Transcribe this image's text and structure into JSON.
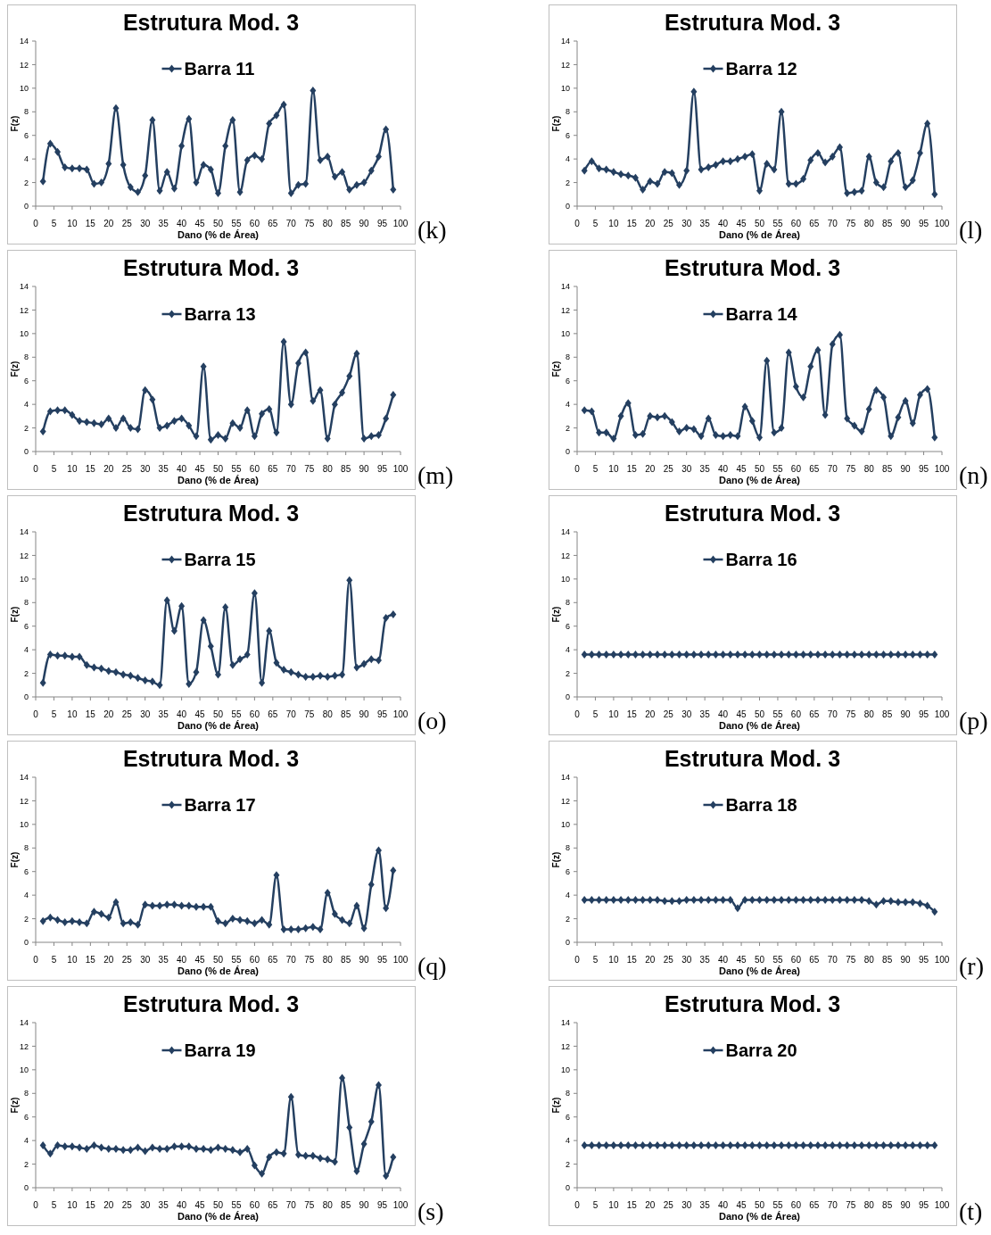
{
  "chart_data": [
    {
      "type": "line",
      "title": "Estrutura Mod. 3",
      "xlabel": "Dano (% de Área)",
      "ylabel": "F(z)",
      "legend": "top",
      "marker": "diamond",
      "xlim": [
        0,
        100
      ],
      "xticks": [
        0,
        5,
        10,
        15,
        20,
        25,
        30,
        35,
        40,
        45,
        50,
        55,
        60,
        65,
        70,
        75,
        80,
        85,
        90,
        95,
        100
      ],
      "ylim": [
        0,
        14
      ],
      "yticks": [
        0,
        2,
        4,
        6,
        8,
        10,
        12,
        14
      ],
      "annotations": [
        "(k)"
      ],
      "x": [
        2,
        4,
        6,
        8,
        10,
        12,
        14,
        16,
        18,
        20,
        22,
        24,
        26,
        28,
        30,
        32,
        34,
        36,
        38,
        40,
        42,
        44,
        46,
        48,
        50,
        52,
        54,
        56,
        58,
        60,
        62,
        64,
        66,
        68,
        70,
        72,
        74,
        76,
        78,
        80,
        82,
        84,
        86,
        88,
        90,
        92,
        94,
        96,
        98
      ],
      "series": [
        {
          "name": "Barra 11",
          "color": "#243f60",
          "values": [
            2.1,
            5.3,
            4.6,
            3.3,
            3.2,
            3.2,
            3.1,
            1.9,
            2.0,
            3.6,
            8.3,
            3.5,
            1.6,
            1.2,
            2.6,
            7.3,
            1.3,
            2.9,
            1.5,
            5.1,
            7.4,
            2.0,
            3.5,
            3.1,
            1.1,
            5.1,
            7.3,
            1.2,
            3.9,
            4.3,
            4.0,
            7.0,
            7.7,
            8.6,
            1.1,
            1.8,
            1.9,
            9.8,
            3.9,
            4.2,
            2.5,
            2.9,
            1.4,
            1.8,
            2.0,
            3.0,
            4.2,
            6.5,
            1.4
          ]
        }
      ]
    },
    {
      "type": "line",
      "title": "Estrutura Mod. 3",
      "xlabel": "Dano (% de Área)",
      "ylabel": "F(z)",
      "legend": "top",
      "marker": "diamond",
      "xlim": [
        0,
        100
      ],
      "xticks": [
        0,
        5,
        10,
        15,
        20,
        25,
        30,
        35,
        40,
        45,
        50,
        55,
        60,
        65,
        70,
        75,
        80,
        85,
        90,
        95,
        100
      ],
      "ylim": [
        0,
        14
      ],
      "yticks": [
        0,
        2,
        4,
        6,
        8,
        10,
        12,
        14
      ],
      "annotations": [
        "(l)"
      ],
      "x": [
        2,
        4,
        6,
        8,
        10,
        12,
        14,
        16,
        18,
        20,
        22,
        24,
        26,
        28,
        30,
        32,
        34,
        36,
        38,
        40,
        42,
        44,
        46,
        48,
        50,
        52,
        54,
        56,
        58,
        60,
        62,
        64,
        66,
        68,
        70,
        72,
        74,
        76,
        78,
        80,
        82,
        84,
        86,
        88,
        90,
        92,
        94,
        96,
        98
      ],
      "series": [
        {
          "name": "Barra 12",
          "color": "#243f60",
          "values": [
            3.0,
            3.8,
            3.2,
            3.1,
            2.9,
            2.7,
            2.6,
            2.4,
            1.4,
            2.1,
            1.9,
            2.9,
            2.8,
            1.8,
            3.0,
            9.7,
            3.1,
            3.3,
            3.5,
            3.8,
            3.8,
            4.0,
            4.2,
            4.4,
            1.3,
            3.6,
            3.1,
            8.0,
            1.9,
            1.9,
            2.3,
            3.9,
            4.5,
            3.7,
            4.2,
            5.0,
            1.1,
            1.2,
            1.3,
            4.2,
            2.0,
            1.6,
            3.8,
            4.5,
            1.6,
            2.2,
            4.5,
            7.0,
            1.0
          ]
        }
      ]
    },
    {
      "type": "line",
      "title": "Estrutura Mod. 3",
      "xlabel": "Dano (% de Área)",
      "ylabel": "F(z)",
      "legend": "top",
      "marker": "diamond",
      "xlim": [
        0,
        100
      ],
      "xticks": [
        0,
        5,
        10,
        15,
        20,
        25,
        30,
        35,
        40,
        45,
        50,
        55,
        60,
        65,
        70,
        75,
        80,
        85,
        90,
        95,
        100
      ],
      "ylim": [
        0,
        14
      ],
      "yticks": [
        0,
        2,
        4,
        6,
        8,
        10,
        12,
        14
      ],
      "annotations": [
        "(m)"
      ],
      "x": [
        2,
        4,
        6,
        8,
        10,
        12,
        14,
        16,
        18,
        20,
        22,
        24,
        26,
        28,
        30,
        32,
        34,
        36,
        38,
        40,
        42,
        44,
        46,
        48,
        50,
        52,
        54,
        56,
        58,
        60,
        62,
        64,
        66,
        68,
        70,
        72,
        74,
        76,
        78,
        80,
        82,
        84,
        86,
        88,
        90,
        92,
        94,
        96,
        98
      ],
      "series": [
        {
          "name": "Barra 13",
          "color": "#243f60",
          "values": [
            1.7,
            3.4,
            3.5,
            3.5,
            3.1,
            2.6,
            2.5,
            2.4,
            2.3,
            2.8,
            2.0,
            2.8,
            2.0,
            1.9,
            5.2,
            4.4,
            2.0,
            2.2,
            2.6,
            2.8,
            2.2,
            1.3,
            7.2,
            1.0,
            1.4,
            1.1,
            2.4,
            2.0,
            3.5,
            1.3,
            3.2,
            3.6,
            1.6,
            9.3,
            4.0,
            7.5,
            8.4,
            4.3,
            5.2,
            1.1,
            4.0,
            5.0,
            6.4,
            8.3,
            1.1,
            1.3,
            1.4,
            2.8,
            4.8
          ]
        }
      ]
    },
    {
      "type": "line",
      "title": "Estrutura Mod. 3",
      "xlabel": "Dano (% de Área)",
      "ylabel": "F(z)",
      "legend": "top",
      "marker": "diamond",
      "xlim": [
        0,
        100
      ],
      "xticks": [
        0,
        5,
        10,
        15,
        20,
        25,
        30,
        35,
        40,
        45,
        50,
        55,
        60,
        65,
        70,
        75,
        80,
        85,
        90,
        95,
        100
      ],
      "ylim": [
        0,
        14
      ],
      "yticks": [
        0,
        2,
        4,
        6,
        8,
        10,
        12,
        14
      ],
      "annotations": [
        "(n)"
      ],
      "x": [
        2,
        4,
        6,
        8,
        10,
        12,
        14,
        16,
        18,
        20,
        22,
        24,
        26,
        28,
        30,
        32,
        34,
        36,
        38,
        40,
        42,
        44,
        46,
        48,
        50,
        52,
        54,
        56,
        58,
        60,
        62,
        64,
        66,
        68,
        70,
        72,
        74,
        76,
        78,
        80,
        82,
        84,
        86,
        88,
        90,
        92,
        94,
        96,
        98
      ],
      "series": [
        {
          "name": "Barra 14",
          "color": "#243f60",
          "values": [
            3.5,
            3.4,
            1.6,
            1.6,
            1.1,
            3.0,
            4.1,
            1.4,
            1.5,
            3.0,
            2.9,
            3.0,
            2.5,
            1.7,
            2.0,
            1.9,
            1.3,
            2.8,
            1.4,
            1.3,
            1.4,
            1.3,
            3.8,
            2.6,
            1.2,
            7.7,
            1.6,
            2.0,
            8.4,
            5.5,
            4.6,
            7.2,
            8.6,
            3.1,
            9.1,
            9.9,
            2.8,
            2.2,
            1.7,
            3.6,
            5.2,
            4.6,
            1.3,
            2.9,
            4.3,
            2.4,
            4.8,
            5.3,
            1.2
          ]
        }
      ]
    },
    {
      "type": "line",
      "title": "Estrutura Mod. 3",
      "xlabel": "Dano (% de Área)",
      "ylabel": "F(z)",
      "legend": "top",
      "marker": "diamond",
      "xlim": [
        0,
        100
      ],
      "xticks": [
        0,
        5,
        10,
        15,
        20,
        25,
        30,
        35,
        40,
        45,
        50,
        55,
        60,
        65,
        70,
        75,
        80,
        85,
        90,
        95,
        100
      ],
      "ylim": [
        0,
        14
      ],
      "yticks": [
        0,
        2,
        4,
        6,
        8,
        10,
        12,
        14
      ],
      "annotations": [
        "(o)"
      ],
      "x": [
        2,
        4,
        6,
        8,
        10,
        12,
        14,
        16,
        18,
        20,
        22,
        24,
        26,
        28,
        30,
        32,
        34,
        36,
        38,
        40,
        42,
        44,
        46,
        48,
        50,
        52,
        54,
        56,
        58,
        60,
        62,
        64,
        66,
        68,
        70,
        72,
        74,
        76,
        78,
        80,
        82,
        84,
        86,
        88,
        90,
        92,
        94,
        96,
        98
      ],
      "series": [
        {
          "name": "Barra 15",
          "color": "#243f60",
          "values": [
            1.2,
            3.6,
            3.5,
            3.5,
            3.4,
            3.4,
            2.7,
            2.5,
            2.4,
            2.2,
            2.1,
            1.9,
            1.8,
            1.6,
            1.4,
            1.3,
            1.0,
            8.2,
            5.6,
            7.7,
            1.1,
            2.1,
            6.5,
            4.3,
            1.9,
            7.6,
            2.7,
            3.2,
            3.6,
            8.8,
            1.2,
            5.6,
            2.9,
            2.3,
            2.1,
            1.9,
            1.7,
            1.7,
            1.8,
            1.7,
            1.8,
            1.9,
            9.9,
            2.5,
            2.8,
            3.2,
            3.1,
            6.7,
            7.0
          ]
        }
      ]
    },
    {
      "type": "line",
      "title": "Estrutura Mod. 3",
      "xlabel": "Dano (% de Área)",
      "ylabel": "F(z)",
      "legend": "top",
      "marker": "diamond",
      "xlim": [
        0,
        100
      ],
      "xticks": [
        0,
        5,
        10,
        15,
        20,
        25,
        30,
        35,
        40,
        45,
        50,
        55,
        60,
        65,
        70,
        75,
        80,
        85,
        90,
        95,
        100
      ],
      "ylim": [
        0,
        14
      ],
      "yticks": [
        0,
        2,
        4,
        6,
        8,
        10,
        12,
        14
      ],
      "annotations": [
        "(p)"
      ],
      "x": [
        2,
        4,
        6,
        8,
        10,
        12,
        14,
        16,
        18,
        20,
        22,
        24,
        26,
        28,
        30,
        32,
        34,
        36,
        38,
        40,
        42,
        44,
        46,
        48,
        50,
        52,
        54,
        56,
        58,
        60,
        62,
        64,
        66,
        68,
        70,
        72,
        74,
        76,
        78,
        80,
        82,
        84,
        86,
        88,
        90,
        92,
        94,
        96,
        98
      ],
      "series": [
        {
          "name": "Barra 16",
          "color": "#243f60",
          "values": [
            3.6,
            3.6,
            3.6,
            3.6,
            3.6,
            3.6,
            3.6,
            3.6,
            3.6,
            3.6,
            3.6,
            3.6,
            3.6,
            3.6,
            3.6,
            3.6,
            3.6,
            3.6,
            3.6,
            3.6,
            3.6,
            3.6,
            3.6,
            3.6,
            3.6,
            3.6,
            3.6,
            3.6,
            3.6,
            3.6,
            3.6,
            3.6,
            3.6,
            3.6,
            3.6,
            3.6,
            3.6,
            3.6,
            3.6,
            3.6,
            3.6,
            3.6,
            3.6,
            3.6,
            3.6,
            3.6,
            3.6,
            3.6,
            3.6
          ]
        }
      ]
    },
    {
      "type": "line",
      "title": "Estrutura Mod. 3",
      "xlabel": "Dano (% de Área)",
      "ylabel": "F(z)",
      "legend": "top",
      "marker": "diamond",
      "xlim": [
        0,
        100
      ],
      "xticks": [
        0,
        5,
        10,
        15,
        20,
        25,
        30,
        35,
        40,
        45,
        50,
        55,
        60,
        65,
        70,
        75,
        80,
        85,
        90,
        95,
        100
      ],
      "ylim": [
        0,
        14
      ],
      "yticks": [
        0,
        2,
        4,
        6,
        8,
        10,
        12,
        14
      ],
      "annotations": [
        "(q)"
      ],
      "x": [
        2,
        4,
        6,
        8,
        10,
        12,
        14,
        16,
        18,
        20,
        22,
        24,
        26,
        28,
        30,
        32,
        34,
        36,
        38,
        40,
        42,
        44,
        46,
        48,
        50,
        52,
        54,
        56,
        58,
        60,
        62,
        64,
        66,
        68,
        70,
        72,
        74,
        76,
        78,
        80,
        82,
        84,
        86,
        88,
        90,
        92,
        94,
        96,
        98
      ],
      "series": [
        {
          "name": "Barra 17",
          "color": "#243f60",
          "values": [
            1.8,
            2.1,
            1.9,
            1.7,
            1.8,
            1.7,
            1.6,
            2.6,
            2.4,
            2.1,
            3.4,
            1.6,
            1.7,
            1.5,
            3.2,
            3.1,
            3.1,
            3.2,
            3.2,
            3.1,
            3.1,
            3.0,
            3.0,
            3.0,
            1.8,
            1.6,
            2.0,
            1.9,
            1.8,
            1.6,
            1.9,
            1.5,
            5.7,
            1.1,
            1.1,
            1.1,
            1.2,
            1.3,
            1.1,
            4.2,
            2.4,
            1.9,
            1.6,
            3.1,
            1.2,
            4.9,
            7.8,
            2.9,
            6.1
          ]
        }
      ]
    },
    {
      "type": "line",
      "title": "Estrutura Mod. 3",
      "xlabel": "Dano (% de Área)",
      "ylabel": "F(z)",
      "legend": "top",
      "marker": "diamond",
      "xlim": [
        0,
        100
      ],
      "xticks": [
        0,
        5,
        10,
        15,
        20,
        25,
        30,
        35,
        40,
        45,
        50,
        55,
        60,
        65,
        70,
        75,
        80,
        85,
        90,
        95,
        100
      ],
      "ylim": [
        0,
        14
      ],
      "yticks": [
        0,
        2,
        4,
        6,
        8,
        10,
        12,
        14
      ],
      "annotations": [
        "(r)"
      ],
      "x": [
        2,
        4,
        6,
        8,
        10,
        12,
        14,
        16,
        18,
        20,
        22,
        24,
        26,
        28,
        30,
        32,
        34,
        36,
        38,
        40,
        42,
        44,
        46,
        48,
        50,
        52,
        54,
        56,
        58,
        60,
        62,
        64,
        66,
        68,
        70,
        72,
        74,
        76,
        78,
        80,
        82,
        84,
        86,
        88,
        90,
        92,
        94,
        96,
        98
      ],
      "series": [
        {
          "name": "Barra 18",
          "color": "#243f60",
          "values": [
            3.6,
            3.6,
            3.6,
            3.6,
            3.6,
            3.6,
            3.6,
            3.6,
            3.6,
            3.6,
            3.6,
            3.5,
            3.5,
            3.5,
            3.6,
            3.6,
            3.6,
            3.6,
            3.6,
            3.6,
            3.6,
            2.9,
            3.6,
            3.6,
            3.6,
            3.6,
            3.6,
            3.6,
            3.6,
            3.6,
            3.6,
            3.6,
            3.6,
            3.6,
            3.6,
            3.6,
            3.6,
            3.6,
            3.6,
            3.5,
            3.2,
            3.5,
            3.5,
            3.4,
            3.4,
            3.4,
            3.3,
            3.1,
            2.6
          ]
        }
      ]
    },
    {
      "type": "line",
      "title": "Estrutura Mod. 3",
      "xlabel": "Dano (% de Área)",
      "ylabel": "F(z)",
      "legend": "top",
      "marker": "diamond",
      "xlim": [
        0,
        100
      ],
      "xticks": [
        0,
        5,
        10,
        15,
        20,
        25,
        30,
        35,
        40,
        45,
        50,
        55,
        60,
        65,
        70,
        75,
        80,
        85,
        90,
        95,
        100
      ],
      "ylim": [
        0,
        14
      ],
      "yticks": [
        0,
        2,
        4,
        6,
        8,
        10,
        12,
        14
      ],
      "annotations": [
        "(s)"
      ],
      "x": [
        2,
        4,
        6,
        8,
        10,
        12,
        14,
        16,
        18,
        20,
        22,
        24,
        26,
        28,
        30,
        32,
        34,
        36,
        38,
        40,
        42,
        44,
        46,
        48,
        50,
        52,
        54,
        56,
        58,
        60,
        62,
        64,
        66,
        68,
        70,
        72,
        74,
        76,
        78,
        80,
        82,
        84,
        86,
        88,
        90,
        92,
        94,
        96,
        98
      ],
      "series": [
        {
          "name": "Barra 19",
          "color": "#243f60",
          "values": [
            3.6,
            2.9,
            3.6,
            3.5,
            3.5,
            3.4,
            3.3,
            3.6,
            3.4,
            3.3,
            3.3,
            3.2,
            3.2,
            3.4,
            3.1,
            3.4,
            3.3,
            3.3,
            3.5,
            3.5,
            3.5,
            3.3,
            3.3,
            3.2,
            3.4,
            3.3,
            3.2,
            3.0,
            3.3,
            1.9,
            1.2,
            2.6,
            3.0,
            2.9,
            7.7,
            2.8,
            2.7,
            2.7,
            2.5,
            2.4,
            2.2,
            9.3,
            5.1,
            1.4,
            3.7,
            5.6,
            8.7,
            1.0,
            2.6
          ]
        }
      ]
    },
    {
      "type": "line",
      "title": "Estrutura Mod. 3",
      "xlabel": "Dano (% de Área)",
      "ylabel": "F(z)",
      "legend": "top",
      "marker": "diamond",
      "xlim": [
        0,
        100
      ],
      "xticks": [
        0,
        5,
        10,
        15,
        20,
        25,
        30,
        35,
        40,
        45,
        50,
        55,
        60,
        65,
        70,
        75,
        80,
        85,
        90,
        95,
        100
      ],
      "ylim": [
        0,
        14
      ],
      "yticks": [
        0,
        2,
        4,
        6,
        8,
        10,
        12,
        14
      ],
      "annotations": [
        "(t)"
      ],
      "x": [
        2,
        4,
        6,
        8,
        10,
        12,
        14,
        16,
        18,
        20,
        22,
        24,
        26,
        28,
        30,
        32,
        34,
        36,
        38,
        40,
        42,
        44,
        46,
        48,
        50,
        52,
        54,
        56,
        58,
        60,
        62,
        64,
        66,
        68,
        70,
        72,
        74,
        76,
        78,
        80,
        82,
        84,
        86,
        88,
        90,
        92,
        94,
        96,
        98
      ],
      "series": [
        {
          "name": "Barra 20",
          "color": "#243f60",
          "values": [
            3.6,
            3.6,
            3.6,
            3.6,
            3.6,
            3.6,
            3.6,
            3.6,
            3.6,
            3.6,
            3.6,
            3.6,
            3.6,
            3.6,
            3.6,
            3.6,
            3.6,
            3.6,
            3.6,
            3.6,
            3.6,
            3.6,
            3.6,
            3.6,
            3.6,
            3.6,
            3.6,
            3.6,
            3.6,
            3.6,
            3.6,
            3.6,
            3.6,
            3.6,
            3.6,
            3.6,
            3.6,
            3.6,
            3.6,
            3.6,
            3.6,
            3.6,
            3.6,
            3.6,
            3.6,
            3.6,
            3.6,
            3.6,
            3.6
          ]
        }
      ]
    }
  ]
}
